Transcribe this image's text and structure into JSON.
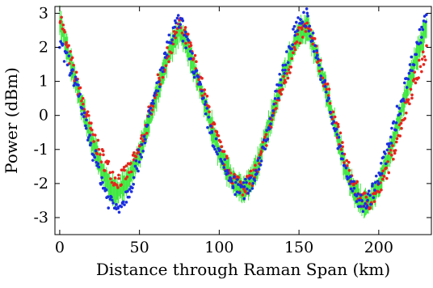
{
  "chart_data": {
    "type": "scatter",
    "title": "",
    "xlabel": "Distance through Raman Span  (km)",
    "ylabel": "Power (dBm)",
    "xlim": [
      -3,
      233
    ],
    "ylim": [
      -3.5,
      3.2
    ],
    "xticks": [
      0,
      50,
      100,
      150,
      200
    ],
    "xtick_labels": [
      "0",
      "50",
      "100",
      "150",
      "200"
    ],
    "yticks": [
      -3,
      -2,
      -1,
      0,
      1,
      2,
      3
    ],
    "ytick_labels": [
      "-3",
      "-2",
      "-1",
      "0",
      "1",
      "2",
      "3"
    ],
    "grid": false,
    "legend": "none",
    "colors": {
      "red": "#e8241c",
      "green": "#3ee83e",
      "blue": "#1a2ee0"
    },
    "series": [
      {
        "color": "red",
        "style": "dots",
        "x": [
          0,
          5,
          10,
          15,
          20,
          25,
          30,
          35,
          40,
          45,
          50,
          55,
          60,
          65,
          70,
          75,
          80,
          85,
          90,
          95,
          100,
          105,
          110,
          115,
          120,
          125,
          130,
          135,
          140,
          145,
          150,
          155,
          160,
          165,
          170,
          175,
          180,
          185,
          190,
          195,
          200,
          205,
          210,
          215,
          220,
          225,
          230
        ],
        "y": [
          3.0,
          1.9,
          1.1,
          0.3,
          -0.5,
          -1.1,
          -1.5,
          -1.9,
          -1.8,
          -1.5,
          -1.0,
          -0.2,
          0.7,
          1.4,
          2.0,
          2.7,
          2.2,
          1.5,
          0.7,
          -0.1,
          -0.9,
          -1.5,
          -1.9,
          -2.1,
          -1.9,
          -1.4,
          -0.6,
          0.2,
          0.9,
          1.6,
          2.3,
          2.6,
          2.0,
          1.2,
          0.3,
          -0.6,
          -1.5,
          -2.1,
          -2.5,
          -2.5,
          -2.2,
          -1.6,
          -0.9,
          -0.1,
          0.7,
          1.3,
          1.9
        ]
      },
      {
        "color": "green",
        "style": "band",
        "x": [
          0,
          5,
          10,
          15,
          20,
          25,
          30,
          35,
          40,
          45,
          50,
          55,
          60,
          65,
          70,
          75,
          80,
          85,
          90,
          95,
          100,
          105,
          110,
          115,
          120,
          125,
          130,
          135,
          140,
          145,
          150,
          155,
          160,
          165,
          170,
          175,
          180,
          185,
          190,
          195,
          200,
          205,
          210,
          215,
          220,
          225,
          230
        ],
        "y": [
          2.8,
          1.9,
          1.0,
          0.1,
          -0.7,
          -1.4,
          -2.0,
          -2.3,
          -2.1,
          -1.7,
          -1.1,
          -0.3,
          0.5,
          1.3,
          2.0,
          2.5,
          2.0,
          1.3,
          0.5,
          -0.3,
          -1.1,
          -1.6,
          -2.0,
          -2.2,
          -1.9,
          -1.3,
          -0.5,
          0.3,
          1.1,
          1.8,
          2.4,
          2.6,
          1.9,
          1.1,
          0.2,
          -0.8,
          -1.7,
          -2.3,
          -2.6,
          -2.5,
          -2.1,
          -1.4,
          -0.6,
          0.3,
          1.1,
          1.9,
          2.6
        ]
      },
      {
        "color": "blue",
        "style": "dots",
        "x": [
          0,
          5,
          10,
          15,
          20,
          25,
          30,
          35,
          40,
          45,
          50,
          55,
          60,
          65,
          70,
          75,
          80,
          85,
          90,
          95,
          100,
          105,
          110,
          115,
          120,
          125,
          130,
          135,
          140,
          145,
          150,
          155,
          160,
          165,
          170,
          175,
          180,
          185,
          190,
          195,
          200,
          205,
          210,
          215,
          220,
          225,
          230
        ],
        "y": [
          2.0,
          1.6,
          0.9,
          0.0,
          -0.9,
          -1.7,
          -2.4,
          -2.7,
          -2.5,
          -2.0,
          -1.2,
          -0.3,
          0.6,
          1.5,
          2.3,
          2.8,
          2.1,
          1.3,
          0.4,
          -0.5,
          -1.2,
          -1.7,
          -2.1,
          -2.2,
          -2.0,
          -1.4,
          -0.5,
          0.4,
          1.3,
          2.1,
          2.8,
          2.9,
          2.0,
          1.0,
          0.1,
          -0.9,
          -1.7,
          -2.3,
          -2.6,
          -2.4,
          -1.8,
          -1.1,
          -0.3,
          0.6,
          1.4,
          2.2,
          3.0
        ]
      }
    ]
  }
}
